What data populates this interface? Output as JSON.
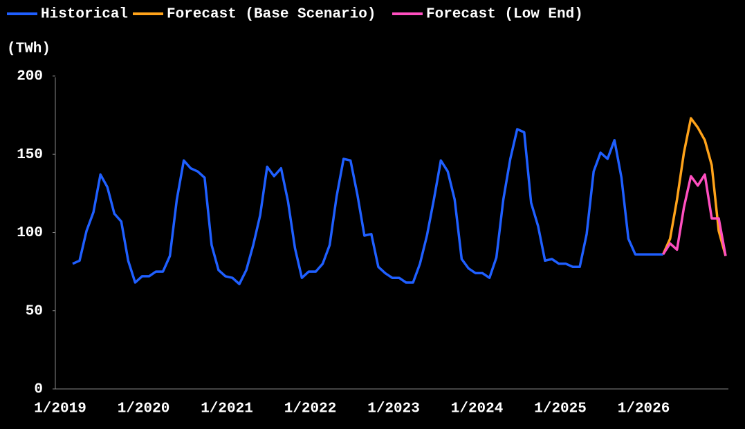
{
  "chart_data": {
    "type": "line",
    "y_unit_label": "(TWh)",
    "x": [
      "1/2019",
      null,
      null,
      null,
      null,
      null,
      null,
      null,
      null,
      null,
      null,
      null,
      "1/2020",
      null,
      null,
      null,
      null,
      null,
      null,
      null,
      null,
      null,
      null,
      null,
      "1/2021",
      null,
      null,
      null,
      null,
      null,
      null,
      null,
      null,
      null,
      null,
      null,
      "1/2022",
      null,
      null,
      null,
      null,
      null,
      null,
      null,
      null,
      null,
      null,
      null,
      "1/2023",
      null,
      null,
      null,
      null,
      null,
      null,
      null,
      null,
      null,
      null,
      null,
      "1/2024",
      null,
      null,
      null,
      null,
      null,
      null,
      null,
      null,
      null,
      null,
      null,
      "1/2025",
      null,
      null,
      null,
      null,
      null,
      null,
      null,
      null,
      null,
      null,
      null,
      "1/2026",
      null,
      null,
      null,
      null,
      null,
      null,
      null,
      null,
      null,
      null
    ],
    "series": [
      {
        "name": "Historical",
        "color": "#1f5fff",
        "values": [
          80,
          82,
          101,
          113,
          137,
          129,
          112,
          107,
          82,
          68,
          72,
          72,
          75,
          75,
          85,
          121,
          146,
          141,
          139,
          135,
          92,
          76,
          72,
          71,
          67,
          76,
          92,
          111,
          142,
          136,
          141,
          120,
          90,
          71,
          75,
          75,
          80,
          92,
          123,
          147,
          146,
          124,
          98,
          99,
          78,
          74,
          71,
          71,
          68,
          68,
          80,
          98,
          121,
          146,
          139,
          121,
          83,
          77,
          74,
          74,
          71,
          84,
          121,
          147,
          166,
          164,
          119,
          104,
          82,
          83,
          80,
          80,
          78,
          78,
          99,
          139,
          151,
          147,
          159,
          135,
          96,
          86,
          86,
          86,
          86,
          86,
          null,
          null,
          null,
          null,
          null,
          null,
          null,
          null,
          null
        ]
      },
      {
        "name": "Forecast (Base Scenario)",
        "color": "#ffa31a",
        "values": [
          null,
          null,
          null,
          null,
          null,
          null,
          null,
          null,
          null,
          null,
          null,
          null,
          null,
          null,
          null,
          null,
          null,
          null,
          null,
          null,
          null,
          null,
          null,
          null,
          null,
          null,
          null,
          null,
          null,
          null,
          null,
          null,
          null,
          null,
          null,
          null,
          null,
          null,
          null,
          null,
          null,
          null,
          null,
          null,
          null,
          null,
          null,
          null,
          null,
          null,
          null,
          null,
          null,
          null,
          null,
          null,
          null,
          null,
          null,
          null,
          null,
          null,
          null,
          null,
          null,
          null,
          null,
          null,
          null,
          null,
          null,
          null,
          null,
          null,
          null,
          null,
          null,
          null,
          null,
          null,
          null,
          null,
          null,
          null,
          null,
          86,
          96,
          121,
          151,
          173,
          167,
          159,
          143,
          101,
          85
        ]
      },
      {
        "name": "Forecast (Low End)",
        "color": "#ff4fc0",
        "values": [
          null,
          null,
          null,
          null,
          null,
          null,
          null,
          null,
          null,
          null,
          null,
          null,
          null,
          null,
          null,
          null,
          null,
          null,
          null,
          null,
          null,
          null,
          null,
          null,
          null,
          null,
          null,
          null,
          null,
          null,
          null,
          null,
          null,
          null,
          null,
          null,
          null,
          null,
          null,
          null,
          null,
          null,
          null,
          null,
          null,
          null,
          null,
          null,
          null,
          null,
          null,
          null,
          null,
          null,
          null,
          null,
          null,
          null,
          null,
          null,
          null,
          null,
          null,
          null,
          null,
          null,
          null,
          null,
          null,
          null,
          null,
          null,
          null,
          null,
          null,
          null,
          null,
          null,
          null,
          null,
          null,
          null,
          null,
          null,
          null,
          86,
          93,
          89,
          116,
          136,
          130,
          137,
          109,
          109,
          85
        ]
      }
    ],
    "ylim": [
      0,
      200
    ],
    "yticks": [
      0,
      50,
      100,
      150,
      200
    ],
    "grid": false
  }
}
